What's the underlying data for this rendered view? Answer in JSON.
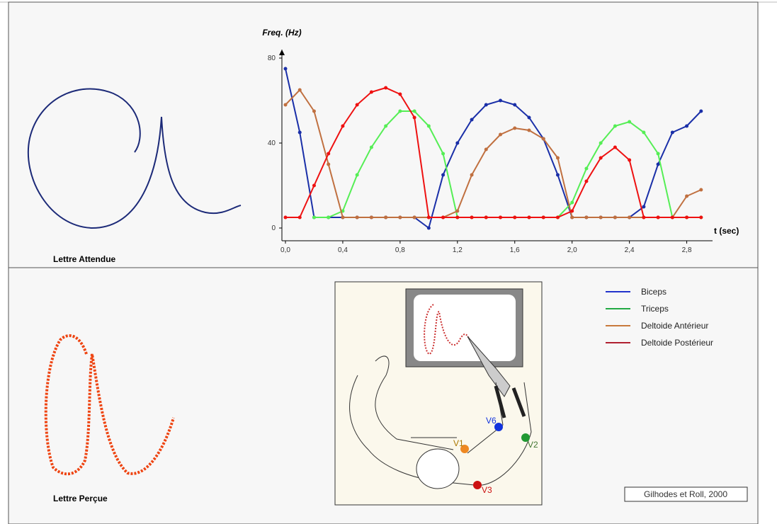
{
  "chart_data": {
    "type": "line",
    "y_label": "Freq. (Hz)",
    "x_label": "t (sec)",
    "x": [
      0,
      0.1,
      0.2,
      0.3,
      0.4,
      0.5,
      0.6,
      0.7,
      0.8,
      0.9,
      1.0,
      1.1,
      1.2,
      1.3,
      1.4,
      1.5,
      1.6,
      1.7,
      1.8,
      1.9,
      2.0,
      2.1,
      2.2,
      2.3,
      2.4,
      2.5,
      2.6,
      2.7,
      2.8,
      2.9
    ],
    "series": [
      {
        "name": "Biceps",
        "color": "#1a2fa8",
        "legend_color": "#2233cc",
        "values": [
          75,
          45,
          5,
          5,
          5,
          5,
          5,
          5,
          5,
          5,
          0,
          25,
          40,
          51,
          58,
          60,
          58,
          52,
          42,
          25,
          5,
          5,
          5,
          5,
          5,
          10,
          30,
          45,
          48,
          55
        ]
      },
      {
        "name": "Triceps",
        "color": "#55ee55",
        "legend_color": "#22aa44",
        "values": [
          null,
          null,
          5,
          5,
          8,
          25,
          38,
          48,
          55,
          55,
          48,
          35,
          5,
          5,
          5,
          5,
          5,
          5,
          5,
          5,
          12,
          28,
          40,
          48,
          50,
          45,
          35,
          5,
          5,
          5
        ]
      },
      {
        "name": "Deltoide Antérieur",
        "color": "#c07040",
        "legend_color": "#c87a3c",
        "values": [
          58,
          65,
          55,
          30,
          5,
          5,
          5,
          5,
          5,
          5,
          5,
          5,
          8,
          25,
          37,
          44,
          47,
          46,
          42,
          33,
          5,
          5,
          5,
          5,
          5,
          5,
          5,
          5,
          15,
          18
        ]
      },
      {
        "name": "Deltoide Postérieur",
        "color": "#ee1111",
        "legend_color": "#b02030",
        "values": [
          5,
          5,
          20,
          35,
          48,
          58,
          64,
          66,
          63,
          52,
          5,
          5,
          5,
          5,
          5,
          5,
          5,
          5,
          5,
          5,
          8,
          22,
          33,
          38,
          32,
          5,
          5,
          5,
          5,
          5
        ]
      }
    ],
    "xlim": [
      0,
      2.98
    ],
    "ylim": [
      -6,
      84
    ],
    "xticks": [
      {
        "value": 0,
        "label": "0,0"
      },
      {
        "value": 0.4,
        "label": "0,4"
      },
      {
        "value": 0.8,
        "label": "0,8"
      },
      {
        "value": 1.2,
        "label": "1,2"
      },
      {
        "value": 1.6,
        "label": "1,6"
      },
      {
        "value": 2.0,
        "label": "2,0"
      },
      {
        "value": 2.4,
        "label": "2,4"
      },
      {
        "value": 2.8,
        "label": "2,8"
      }
    ],
    "yticks": [
      0,
      40,
      80
    ]
  },
  "letters": {
    "expected": "Lettre Attendue",
    "perceived": "Lettre Perçue"
  },
  "illustration": {
    "labels": [
      "V6",
      "V1",
      "V2",
      "V3"
    ]
  },
  "credit": "Gilhodes et Roll, 2000"
}
